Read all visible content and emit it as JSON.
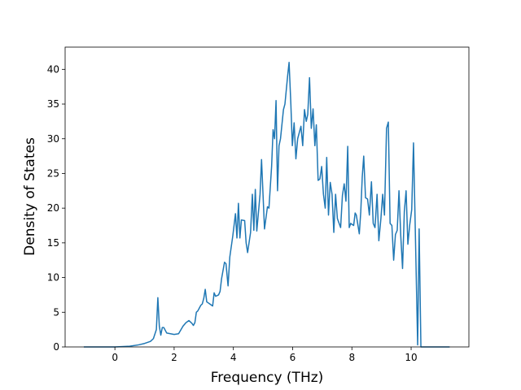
{
  "chart_data": {
    "type": "line",
    "xlabel": "Frequency (THz)",
    "ylabel": "Density of States",
    "x": [
      -1.05,
      0,
      0.5,
      0.8,
      1.0,
      1.2,
      1.3,
      1.4,
      1.45,
      1.5,
      1.55,
      1.6,
      1.65,
      1.75,
      2.0,
      2.15,
      2.3,
      2.4,
      2.5,
      2.6,
      2.65,
      2.7,
      2.75,
      2.8,
      2.9,
      2.95,
      3.0,
      3.05,
      3.1,
      3.2,
      3.3,
      3.35,
      3.4,
      3.5,
      3.55,
      3.6,
      3.7,
      3.75,
      3.82,
      3.88,
      3.98,
      4.07,
      4.12,
      4.17,
      4.22,
      4.27,
      4.38,
      4.43,
      4.48,
      4.58,
      4.64,
      4.69,
      4.74,
      4.79,
      4.9,
      4.95,
      5.0,
      5.05,
      5.15,
      5.2,
      5.29,
      5.34,
      5.39,
      5.44,
      5.49,
      5.54,
      5.59,
      5.69,
      5.74,
      5.83,
      5.88,
      5.94,
      5.99,
      6.05,
      6.11,
      6.17,
      6.28,
      6.34,
      6.4,
      6.46,
      6.51,
      6.57,
      6.63,
      6.69,
      6.75,
      6.8,
      6.86,
      6.92,
      6.98,
      7.04,
      7.1,
      7.15,
      7.21,
      7.27,
      7.33,
      7.39,
      7.45,
      7.51,
      7.62,
      7.68,
      7.74,
      7.8,
      7.86,
      7.91,
      7.96,
      8.06,
      8.11,
      8.15,
      8.25,
      8.3,
      8.35,
      8.4,
      8.46,
      8.53,
      8.59,
      8.66,
      8.72,
      8.78,
      8.85,
      8.91,
      8.98,
      9.04,
      9.1,
      9.17,
      9.23,
      9.29,
      9.35,
      9.41,
      9.47,
      9.53,
      9.59,
      9.65,
      9.71,
      9.77,
      9.83,
      9.89,
      9.95,
      10.02,
      10.08,
      10.22,
      10.27,
      10.33,
      11.3
    ],
    "series": [
      {
        "color": "#1f77b4",
        "values": [
          0,
          0,
          0.1,
          0.3,
          0.5,
          0.8,
          1.2,
          2.5,
          7.1,
          3,
          1.7,
          2.8,
          2.8,
          2,
          1.8,
          1.9,
          3,
          3.5,
          3.8,
          3.4,
          3.1,
          3.5,
          5,
          5.2,
          6,
          6.2,
          7,
          8.3,
          6.5,
          6.2,
          5.9,
          7.8,
          7.3,
          7.5,
          8,
          9.8,
          12.2,
          12,
          8.8,
          13,
          16,
          19.2,
          15.7,
          20.7,
          15.7,
          18.3,
          18.2,
          15,
          13.6,
          16.5,
          22,
          16.8,
          22.7,
          16.7,
          22,
          27,
          22,
          17,
          20.2,
          20,
          26,
          31.3,
          30,
          35.5,
          22.5,
          29,
          30,
          34.2,
          35,
          39,
          41,
          35,
          29,
          32.3,
          27.1,
          30,
          31.8,
          29,
          34.2,
          32.5,
          33.5,
          38.8,
          31.5,
          34.3,
          29,
          32,
          24,
          24.2,
          26,
          22,
          20,
          27.3,
          19,
          23.7,
          22,
          16.5,
          22,
          18.5,
          17.2,
          21.8,
          23.5,
          21,
          28.9,
          17.2,
          17.8,
          17.5,
          19.3,
          19,
          16.3,
          19.5,
          24.5,
          27.5,
          21.5,
          21.3,
          19,
          23.8,
          17.8,
          17.2,
          22,
          15.3,
          18.5,
          22,
          19,
          31.5,
          32.4,
          17.8,
          17.5,
          12.5,
          16.2,
          16.8,
          22.5,
          16,
          11.3,
          19.5,
          22.5,
          14.8,
          17.5,
          19.8,
          29.4,
          0.3,
          17,
          0,
          0
        ]
      }
    ],
    "xlim": [
      -1.68,
      11.95
    ],
    "ylim": [
      0,
      43.2
    ],
    "xticks": [
      0,
      2,
      4,
      6,
      8,
      10
    ],
    "yticks": [
      0,
      5,
      10,
      15,
      20,
      25,
      30,
      35,
      40
    ]
  }
}
